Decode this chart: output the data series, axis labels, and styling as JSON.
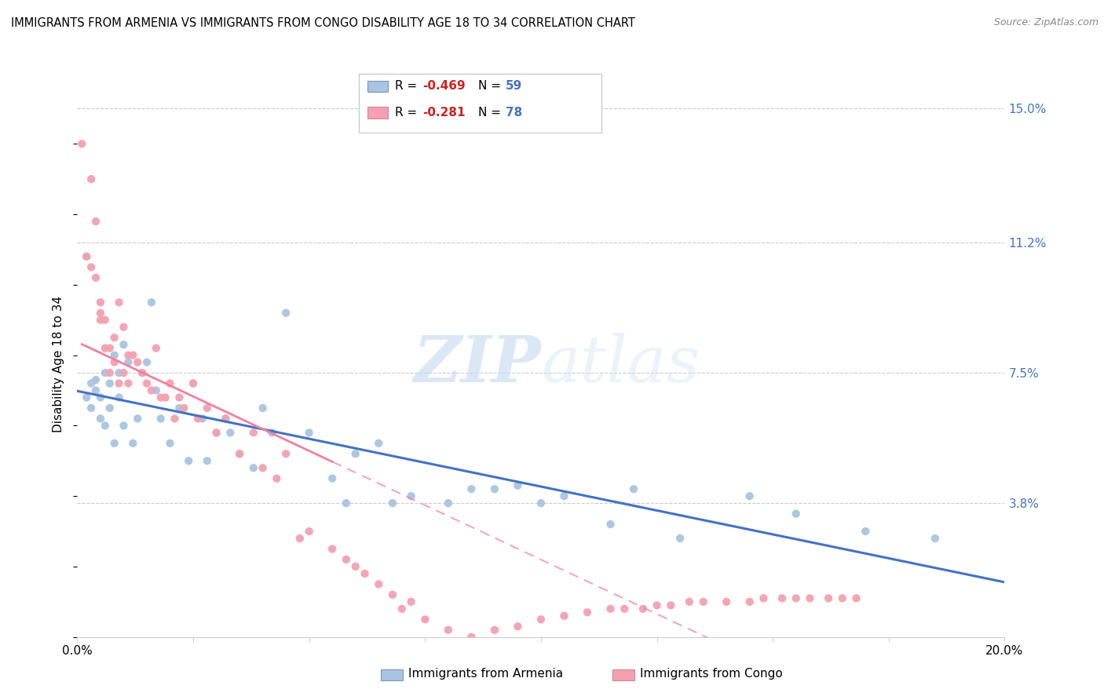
{
  "title": "IMMIGRANTS FROM ARMENIA VS IMMIGRANTS FROM CONGO DISABILITY AGE 18 TO 34 CORRELATION CHART",
  "source": "Source: ZipAtlas.com",
  "ylabel_label": "Disability Age 18 to 34",
  "legend_armenia": "Immigrants from Armenia",
  "legend_congo": "Immigrants from Congo",
  "color_armenia": "#a8c4e0",
  "color_congo": "#f4a0b0",
  "color_trendline_armenia": "#4472c4",
  "color_trendline_congo": "#f080a0",
  "watermark_zip": "ZIP",
  "watermark_atlas": "atlas",
  "xmin": 0.0,
  "xmax": 0.2,
  "ymin": 0.0,
  "ymax": 0.155,
  "yticks": [
    0.038,
    0.075,
    0.112,
    0.15
  ],
  "xticks": [
    0.0,
    0.025,
    0.05,
    0.075,
    0.1,
    0.125,
    0.15,
    0.175,
    0.2
  ],
  "armenia_x": [
    0.002,
    0.003,
    0.003,
    0.004,
    0.004,
    0.005,
    0.005,
    0.006,
    0.006,
    0.007,
    0.007,
    0.008,
    0.008,
    0.009,
    0.009,
    0.01,
    0.01,
    0.011,
    0.012,
    0.013,
    0.014,
    0.015,
    0.016,
    0.017,
    0.018,
    0.02,
    0.022,
    0.024,
    0.025,
    0.027,
    0.028,
    0.03,
    0.032,
    0.033,
    0.035,
    0.038,
    0.04,
    0.042,
    0.045,
    0.05,
    0.055,
    0.058,
    0.06,
    0.065,
    0.068,
    0.072,
    0.08,
    0.085,
    0.09,
    0.095,
    0.1,
    0.105,
    0.115,
    0.12,
    0.13,
    0.145,
    0.155,
    0.17,
    0.185
  ],
  "armenia_y": [
    0.068,
    0.072,
    0.065,
    0.07,
    0.073,
    0.068,
    0.062,
    0.075,
    0.06,
    0.072,
    0.065,
    0.08,
    0.055,
    0.068,
    0.075,
    0.083,
    0.06,
    0.078,
    0.055,
    0.062,
    0.075,
    0.078,
    0.095,
    0.07,
    0.062,
    0.055,
    0.065,
    0.05,
    0.072,
    0.062,
    0.05,
    0.058,
    0.062,
    0.058,
    0.052,
    0.048,
    0.065,
    0.058,
    0.092,
    0.058,
    0.045,
    0.038,
    0.052,
    0.055,
    0.038,
    0.04,
    0.038,
    0.042,
    0.042,
    0.043,
    0.038,
    0.04,
    0.032,
    0.042,
    0.028,
    0.04,
    0.035,
    0.03,
    0.028
  ],
  "congo_x": [
    0.001,
    0.002,
    0.002,
    0.003,
    0.003,
    0.004,
    0.004,
    0.005,
    0.005,
    0.005,
    0.006,
    0.006,
    0.007,
    0.007,
    0.008,
    0.008,
    0.009,
    0.009,
    0.01,
    0.01,
    0.011,
    0.011,
    0.012,
    0.013,
    0.014,
    0.015,
    0.016,
    0.017,
    0.018,
    0.019,
    0.02,
    0.021,
    0.022,
    0.023,
    0.025,
    0.026,
    0.028,
    0.03,
    0.032,
    0.035,
    0.038,
    0.04,
    0.043,
    0.045,
    0.048,
    0.05,
    0.055,
    0.058,
    0.06,
    0.062,
    0.065,
    0.068,
    0.07,
    0.072,
    0.075,
    0.08,
    0.085,
    0.09,
    0.095,
    0.1,
    0.105,
    0.11,
    0.115,
    0.118,
    0.122,
    0.125,
    0.128,
    0.132,
    0.135,
    0.14,
    0.145,
    0.148,
    0.152,
    0.155,
    0.158,
    0.162,
    0.165,
    0.168
  ],
  "congo_y": [
    0.14,
    0.108,
    0.108,
    0.13,
    0.105,
    0.118,
    0.102,
    0.092,
    0.095,
    0.09,
    0.082,
    0.09,
    0.075,
    0.082,
    0.085,
    0.078,
    0.095,
    0.072,
    0.075,
    0.088,
    0.08,
    0.072,
    0.08,
    0.078,
    0.075,
    0.072,
    0.07,
    0.082,
    0.068,
    0.068,
    0.072,
    0.062,
    0.068,
    0.065,
    0.072,
    0.062,
    0.065,
    0.058,
    0.062,
    0.052,
    0.058,
    0.048,
    0.045,
    0.052,
    0.028,
    0.03,
    0.025,
    0.022,
    0.02,
    0.018,
    0.015,
    0.012,
    0.008,
    0.01,
    0.005,
    0.002,
    0.0,
    0.002,
    0.003,
    0.005,
    0.006,
    0.007,
    0.008,
    0.008,
    0.008,
    0.009,
    0.009,
    0.01,
    0.01,
    0.01,
    0.01,
    0.011,
    0.011,
    0.011,
    0.011,
    0.011,
    0.011,
    0.011
  ]
}
